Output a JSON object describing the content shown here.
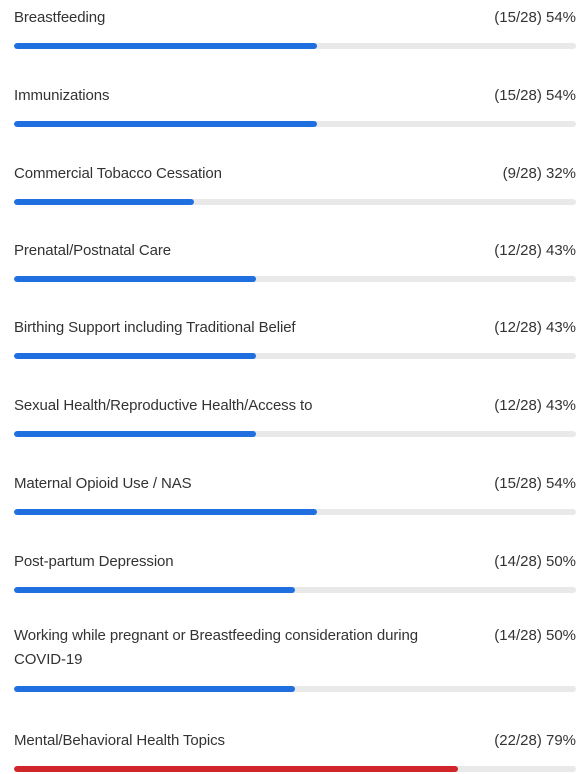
{
  "colors": {
    "bar_default": "#1f6fe0",
    "bar_highlight": "#d0262b",
    "track": "#e9e9e9"
  },
  "chart_data": {
    "type": "bar",
    "orientation": "horizontal",
    "xlim": [
      0,
      100
    ],
    "categories": [
      "Breastfeeding",
      "Immunizations",
      "Commercial Tobacco Cessation",
      "Prenatal/Postnatal Care",
      "Birthing Support including Traditional Belief",
      "Sexual Health/Reproductive Health/Access to",
      "Maternal Opioid Use / NAS",
      "Post-partum Depression",
      "Working while pregnant or Breastfeeding consideration during COVID-19",
      "Mental/Behavioral Health Topics"
    ],
    "values": [
      54,
      54,
      32,
      43,
      43,
      43,
      54,
      50,
      50,
      79
    ],
    "counts": [
      "(15/28)",
      "(15/28)",
      "(9/28)",
      "(12/28)",
      "(12/28)",
      "(12/28)",
      "(15/28)",
      "(14/28)",
      "(14/28)",
      "(22/28)"
    ],
    "stat_labels": [
      "(15/28) 54%",
      "(15/28) 54%",
      "(9/28) 32%",
      "(12/28) 43%",
      "(12/28) 43%",
      "(12/28) 43%",
      "(15/28) 54%",
      "(14/28) 50%",
      "(14/28) 50%",
      "(22/28) 79%"
    ],
    "highlight_index": 9
  }
}
